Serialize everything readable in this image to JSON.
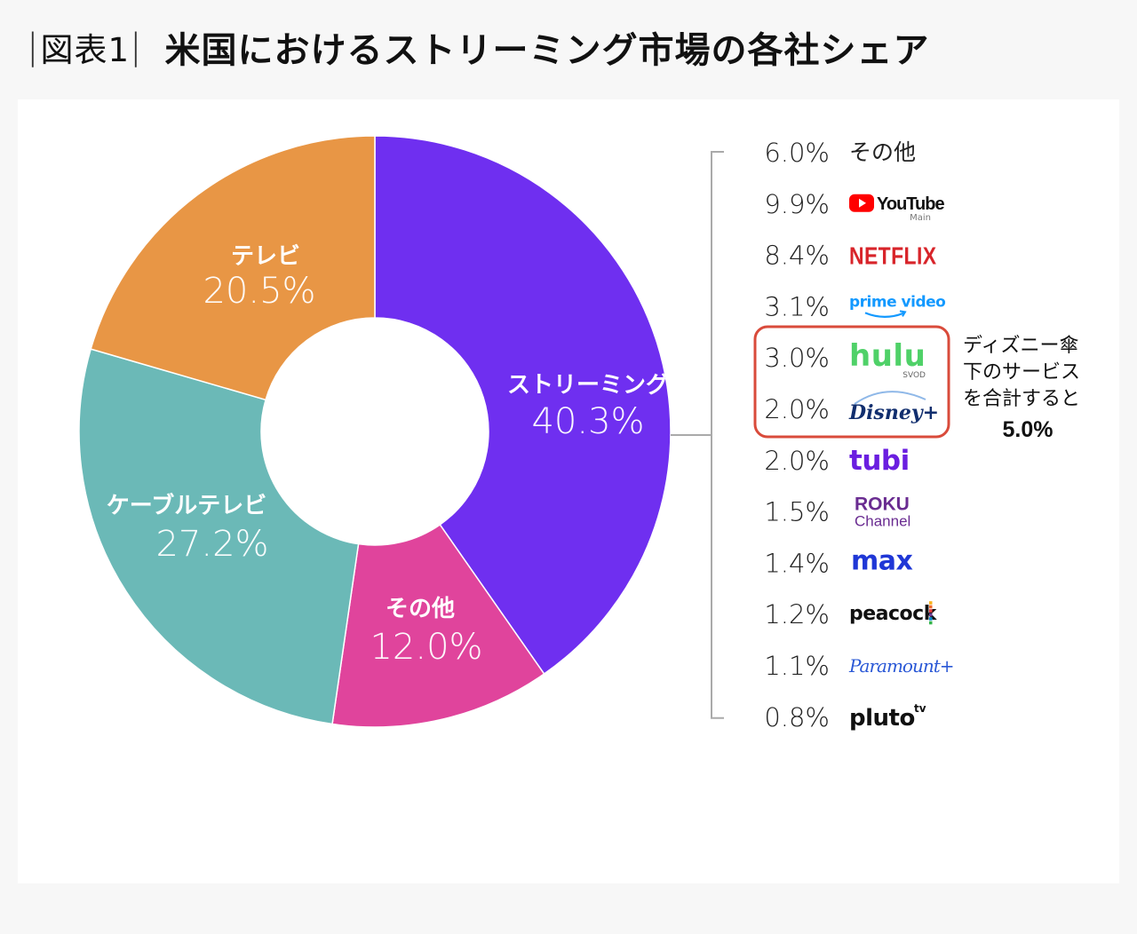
{
  "figure_label": "図表1",
  "title": "米国におけるストリーミング市場の各社シェア",
  "chart_data": [
    {
      "type": "pie",
      "title": "",
      "hole": true,
      "slices": [
        {
          "label": "ストリーミング",
          "value": 40.3,
          "value_label": "40.3%",
          "color": "#6f2ff0"
        },
        {
          "label": "その他",
          "value": 12.0,
          "value_label": "12.0%",
          "color": "#e0449c"
        },
        {
          "label": "ケーブルテレビ",
          "value": 27.2,
          "value_label": "27.2%",
          "color": "#6bb9b7"
        },
        {
          "label": "テレビ",
          "value": 20.5,
          "value_label": "20.5%",
          "color": "#e89645"
        }
      ]
    },
    {
      "type": "table",
      "title": "",
      "rows": [
        {
          "value": 6.0,
          "value_label": "6.0%",
          "name": "その他",
          "logo_icon": "text-label"
        },
        {
          "value": 9.9,
          "value_label": "9.9%",
          "name": "YouTube",
          "sub": "Main",
          "logo_icon": "youtube-logo-icon",
          "color": "#ff0000"
        },
        {
          "value": 8.4,
          "value_label": "8.4%",
          "name": "NETFLIX",
          "logo_icon": "netflix-logo-icon",
          "color": "#d8242a"
        },
        {
          "value": 3.1,
          "value_label": "3.1%",
          "name": "prime video",
          "logo_icon": "prime-video-logo-icon",
          "color": "#1399ff"
        },
        {
          "value": 3.0,
          "value_label": "3.0%",
          "name": "hulu",
          "sub": "SVOD",
          "logo_icon": "hulu-logo-icon",
          "color": "#4fd168"
        },
        {
          "value": 2.0,
          "value_label": "2.0%",
          "name": "Disney+",
          "logo_icon": "disney-plus-logo-icon",
          "color": "#112e6e"
        },
        {
          "value": 2.0,
          "value_label": "2.0%",
          "name": "tubi",
          "logo_icon": "tubi-logo-icon",
          "color": "#6a1ee0"
        },
        {
          "value": 1.5,
          "value_label": "1.5%",
          "name": "Roku",
          "sub": "Channel",
          "logo_icon": "roku-channel-logo-icon",
          "color": "#6a2c91"
        },
        {
          "value": 1.4,
          "value_label": "1.4%",
          "name": "max",
          "logo_icon": "max-logo-icon",
          "color": "#1f37d6"
        },
        {
          "value": 1.2,
          "value_label": "1.2%",
          "name": "peacock",
          "logo_icon": "peacock-logo-icon",
          "color": "#111111"
        },
        {
          "value": 1.1,
          "value_label": "1.1%",
          "name": "Paramount+",
          "logo_icon": "paramount-plus-logo-icon",
          "color": "#2a58d6"
        },
        {
          "value": 0.8,
          "value_label": "0.8%",
          "name": "pluto",
          "sub": "tv",
          "logo_icon": "pluto-tv-logo-icon",
          "color": "#111111"
        }
      ],
      "highlight": {
        "rows": [
          "hulu",
          "Disney+"
        ],
        "color": "#d94b3b",
        "note_lines": [
          "ディズニー傘",
          "下のサービス",
          "を合計すると"
        ],
        "total": "5.0%"
      }
    }
  ]
}
